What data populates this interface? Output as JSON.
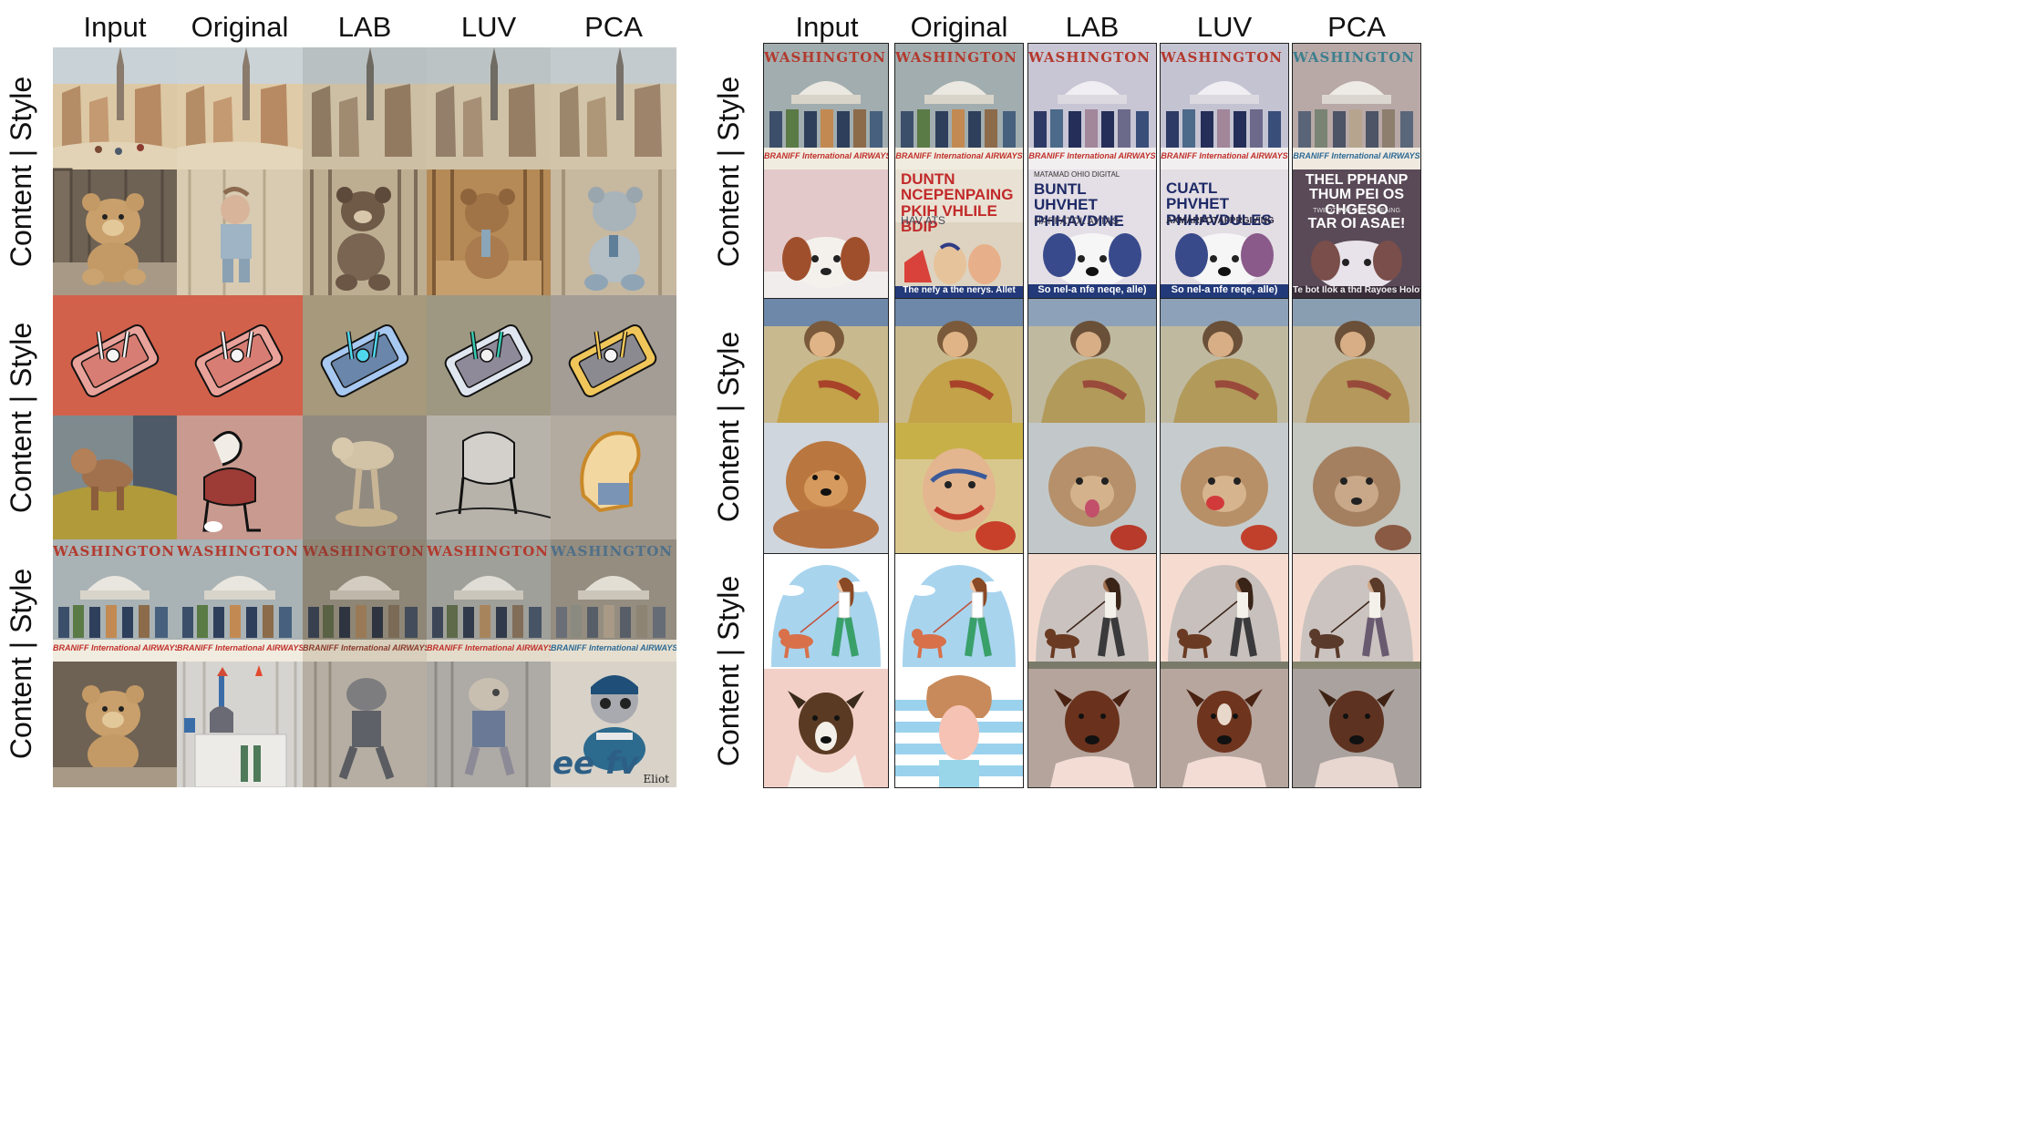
{
  "columns": [
    "Input",
    "Original",
    "LAB",
    "LUV",
    "PCA"
  ],
  "row_label": "Content | Style",
  "posters": {
    "title": "WASHINGTON D.C.",
    "footer": "BRANIFF International AIRWAYS",
    "orig_text": "DUNTN NCEPENPAING PKIH VHLILE BDIP",
    "orig_sub": "HAV ATS",
    "orig_caption": "The nefy a the nerys. Allet",
    "lab_text": "BUNTL UHVHET PHHAVDINE",
    "lab_sub": "HAPFATOL AVTAS",
    "lab_top": "MATAMAD OHIO DIGITAL",
    "lab_caption": "So nel-a nfe neqe, alle)",
    "luv_text": "CUATL PHVHET PHHAVDULES",
    "luv_sub": "AXMARPOTAFPRGIVING",
    "luv_caption": "So nel-a nfe reqe, alle)",
    "pca_text": "THEL PPHANP THUM PEI OS CHGESO",
    "pca_sub": "TWBOT VOE THE DSPEAING",
    "pca_text2": "TAR OI ASAE!",
    "pca_caption": "Te bot Ilok a thd Rayoes Holot?"
  },
  "teddy_sign": "Eliot",
  "teddy_letters": "ee  fv",
  "colors": {
    "background": "#ffffff",
    "phone_bg_input": "#d2614c",
    "phone_bg_lab": "#a6997c",
    "phone_bg_luv": "#9e9882",
    "phone_bg_pca": "#a49d95"
  }
}
